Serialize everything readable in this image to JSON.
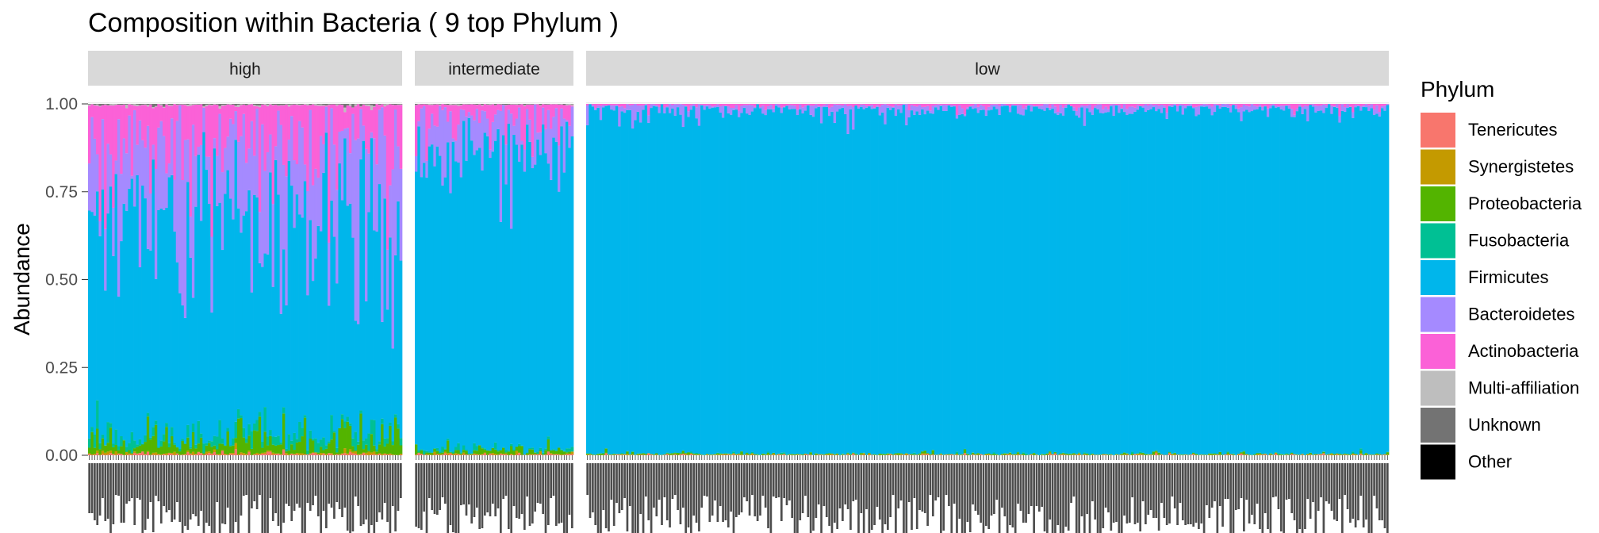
{
  "chart_data": {
    "type": "bar",
    "stacked": true,
    "title": "Composition within Bacteria ( 9 top Phylum )",
    "xlabel": "",
    "ylabel": "Abundance",
    "ylim": [
      0,
      1
    ],
    "y_ticks": [
      "0.00",
      "0.25",
      "0.50",
      "0.75",
      "1.00"
    ],
    "grid": true,
    "legend": {
      "title": "Phylum",
      "placement": "right",
      "entries": [
        {
          "name": "Tenericutes",
          "color": "#F8766D"
        },
        {
          "name": "Synergistetes",
          "color": "#C49A00"
        },
        {
          "name": "Proteobacteria",
          "color": "#53B400"
        },
        {
          "name": "Fusobacteria",
          "color": "#00C094"
        },
        {
          "name": "Firmicutes",
          "color": "#00B6EB"
        },
        {
          "name": "Bacteroidetes",
          "color": "#A58AFF"
        },
        {
          "name": "Actinobacteria",
          "color": "#FB61D7"
        },
        {
          "name": "Multi-affiliation",
          "color": "#BEBEBE"
        },
        {
          "name": "Unknown",
          "color": "#737373"
        },
        {
          "name": "Other",
          "color": "#000000"
        }
      ]
    },
    "panels": [
      {
        "label": "high",
        "approx_sample_count": 118,
        "mean_composition": {
          "Tenericutes": 0.003,
          "Synergistetes": 0.003,
          "Proteobacteria": 0.03,
          "Fusobacteria": 0.02,
          "Firmicutes": 0.55,
          "Bacteroidetes": 0.25,
          "Actinobacteria": 0.14,
          "Multi-affiliation": 0.002,
          "Unknown": 0.002
        }
      },
      {
        "label": "intermediate",
        "approx_sample_count": 60,
        "mean_composition": {
          "Tenericutes": 0.002,
          "Synergistetes": 0.002,
          "Proteobacteria": 0.01,
          "Fusobacteria": 0.005,
          "Firmicutes": 0.83,
          "Bacteroidetes": 0.09,
          "Actinobacteria": 0.06,
          "Multi-affiliation": 0.001,
          "Unknown": 0.001
        }
      },
      {
        "label": "low",
        "approx_sample_count": 302,
        "mean_composition": {
          "Tenericutes": 0.001,
          "Synergistetes": 0.001,
          "Proteobacteria": 0.002,
          "Fusobacteria": 0.001,
          "Firmicutes": 0.975,
          "Bacteroidetes": 0.014,
          "Actinobacteria": 0.006,
          "Multi-affiliation": 0.0,
          "Unknown": 0.0
        }
      }
    ]
  }
}
